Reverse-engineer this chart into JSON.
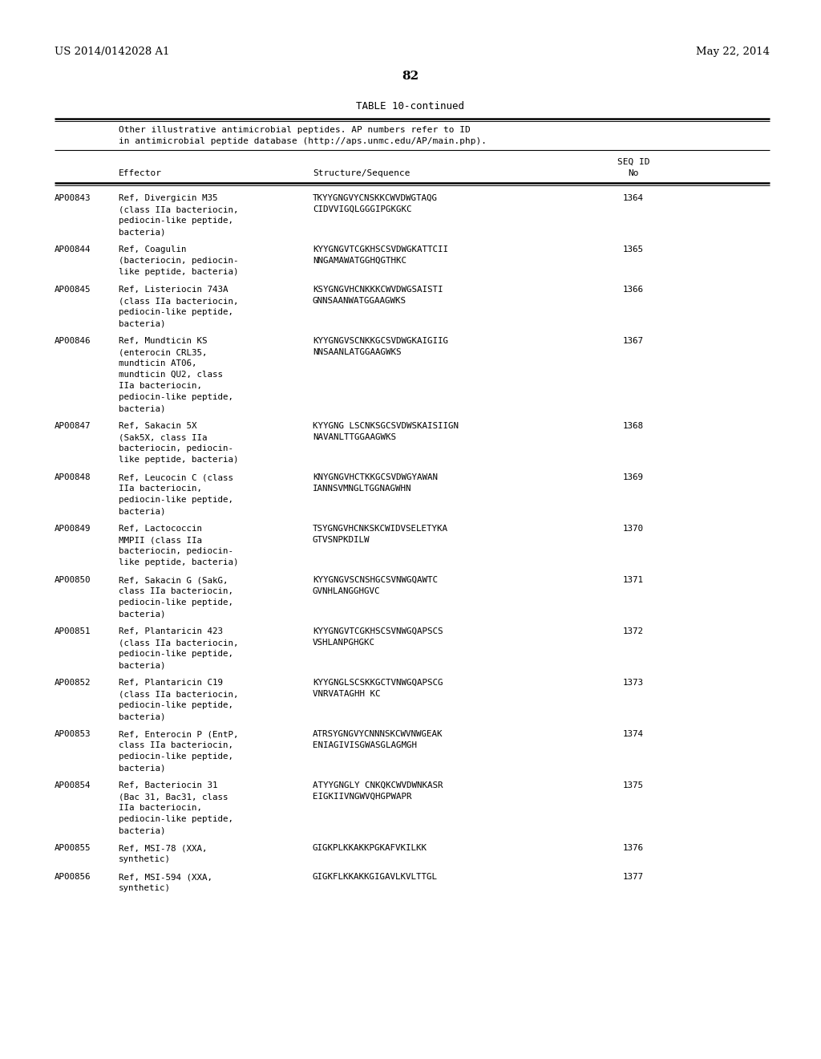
{
  "header_left": "US 2014/0142028 A1",
  "header_right": "May 22, 2014",
  "page_number": "82",
  "table_title": "TABLE 10-continued",
  "table_subtitle_line1": "Other illustrative antimicrobial peptides. AP numbers refer to ID",
  "table_subtitle_line2": "in antimicrobial peptide database (http://aps.unmc.edu/AP/main.php).",
  "col_header_effector": "Effector",
  "col_header_sequence": "Structure/Sequence",
  "col_header_seqid1": "SEQ ID",
  "col_header_seqid2": "No",
  "rows": [
    {
      "ap": "AP00843",
      "effector": [
        "Ref, Divergicin M35",
        "(class IIa bacteriocin,",
        "pediocin-like peptide,",
        "bacteria)"
      ],
      "sequence": [
        "TKYYGNGVYCNSKKCWVDWGTAQG",
        "CIDVVIGQLGGGIPGKGKC"
      ],
      "seq_id": "1364"
    },
    {
      "ap": "AP00844",
      "effector": [
        "Ref, Coagulin",
        "(bacteriocin, pediocin-",
        "like peptide, bacteria)"
      ],
      "sequence": [
        "KYYGNGVTCGKHSCSVDWGKATTCII",
        "NNGAMAWATGGHQGTHKC"
      ],
      "seq_id": "1365"
    },
    {
      "ap": "AP00845",
      "effector": [
        "Ref, Listeriocin 743A",
        "(class IIa bacteriocin,",
        "pediocin-like peptide,",
        "bacteria)"
      ],
      "sequence": [
        "KSYGNGVHCNKKKCWVDWGSAISTI",
        "GNNSAANWATGGAAGWKS"
      ],
      "seq_id": "1366"
    },
    {
      "ap": "AP00846",
      "effector": [
        "Ref, Mundticin KS",
        "(enterocin CRL35,",
        "mundticin AT06,",
        "mundticin QU2, class",
        "IIa bacteriocin,",
        "pediocin-like peptide,",
        "bacteria)"
      ],
      "sequence": [
        "KYYGNGVSCNKKGCSVDWGKAIGIIG",
        "NNSAANLATGGAAGWKS"
      ],
      "seq_id": "1367"
    },
    {
      "ap": "AP00847",
      "effector": [
        "Ref, Sakacin 5X",
        "(Sak5X, class IIa",
        "bacteriocin, pediocin-",
        "like peptide, bacteria)"
      ],
      "sequence": [
        "KYYGNG LSCNKSGCSVDWSKAISIIGN",
        "NAVANLTTGGAAGWKS"
      ],
      "seq_id": "1368"
    },
    {
      "ap": "AP00848",
      "effector": [
        "Ref, Leucocin C (class",
        "IIa bacteriocin,",
        "pediocin-like peptide,",
        "bacteria)"
      ],
      "sequence": [
        "KNYGNGVHCTKKGCSVDWGYAWAN",
        "IANNSVMNGLTGGNAGWHN"
      ],
      "seq_id": "1369"
    },
    {
      "ap": "AP00849",
      "effector": [
        "Ref, Lactococcin",
        "MMPII (class IIa",
        "bacteriocin, pediocin-",
        "like peptide, bacteria)"
      ],
      "sequence": [
        "TSYGNGVHCNKSKCWIDVSELETYKA",
        "GTVSNPKDILW"
      ],
      "seq_id": "1370"
    },
    {
      "ap": "AP00850",
      "effector": [
        "Ref, Sakacin G (SakG,",
        "class IIa bacteriocin,",
        "pediocin-like peptide,",
        "bacteria)"
      ],
      "sequence": [
        "KYYGNGVSCNSHGCSVNWGQAWTC",
        "GVNHLANGGHGVC"
      ],
      "seq_id": "1371"
    },
    {
      "ap": "AP00851",
      "effector": [
        "Ref, Plantaricin 423",
        "(class IIa bacteriocin,",
        "pediocin-like peptide,",
        "bacteria)"
      ],
      "sequence": [
        "KYYGNGVTCGKHSCSVNWGQAPSCS",
        "VSHLANPGHGKC"
      ],
      "seq_id": "1372"
    },
    {
      "ap": "AP00852",
      "effector": [
        "Ref, Plantaricin C19",
        "(class IIa bacteriocin,",
        "pediocin-like peptide,",
        "bacteria)"
      ],
      "sequence": [
        "KYYGNGLSCSKKGCTVNWGQAPSCG",
        "VNRVATAGHH KC"
      ],
      "seq_id": "1373"
    },
    {
      "ap": "AP00853",
      "effector": [
        "Ref, Enterocin P (EntP,",
        "class IIa bacteriocin,",
        "pediocin-like peptide,",
        "bacteria)"
      ],
      "sequence": [
        "ATRSYGNGVYCNNNSKCWVNWGEAK",
        "ENIAGIVISGWASGLAGMGH"
      ],
      "seq_id": "1374"
    },
    {
      "ap": "AP00854",
      "effector": [
        "Ref, Bacteriocin 31",
        "(Bac 31, Bac31, class",
        "IIa bacteriocin,",
        "pediocin-like peptide,",
        "bacteria)"
      ],
      "sequence": [
        "ATYYGNGLY CNKQKCWVDWNKASR",
        "EIGKIIVNGWVQHGPWAPR"
      ],
      "seq_id": "1375"
    },
    {
      "ap": "AP00855",
      "effector": [
        "Ref, MSI-78 (XXA,",
        "synthetic)"
      ],
      "sequence": [
        "GIGKPLKKAKKPGKAFVKILKK"
      ],
      "seq_id": "1376"
    },
    {
      "ap": "AP00856",
      "effector": [
        "Ref, MSI-594 (XXA,",
        "synthetic)"
      ],
      "sequence": [
        "GIGKFLKKAKKGIGAVLKVLTTGL"
      ],
      "seq_id": "1377"
    }
  ],
  "bg_color": "#ffffff",
  "text_color": "#000000"
}
